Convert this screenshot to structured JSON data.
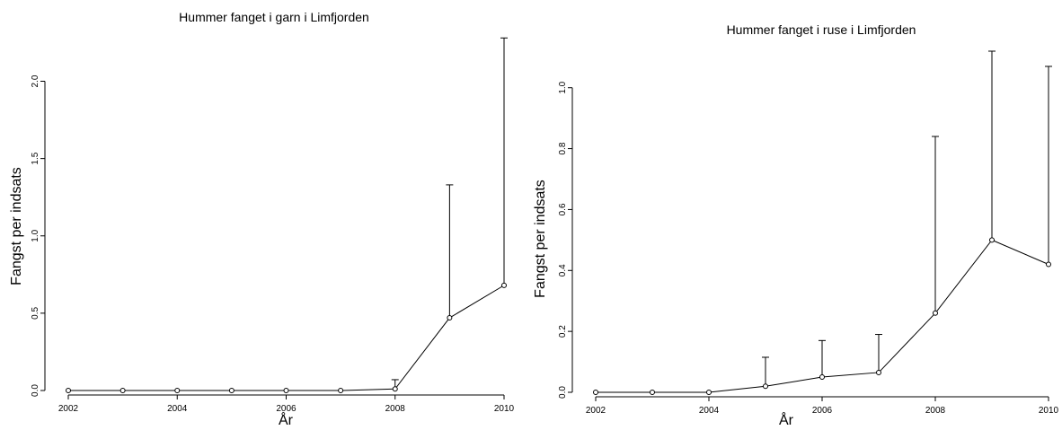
{
  "chart_data": [
    {
      "type": "line",
      "title": "Hummer fanget i garn i Limfjorden",
      "xlabel": "År",
      "ylabel": "Fangst per indsats",
      "xlim": [
        2002,
        2010
      ],
      "ylim": [
        0,
        2.27
      ],
      "xticks": [
        "2002",
        "2004",
        "2006",
        "2008",
        "2010"
      ],
      "yticks": [
        "0.0",
        "0.5",
        "1.0",
        "1.5",
        "2.0"
      ],
      "x": [
        2002,
        2003,
        2004,
        2005,
        2006,
        2007,
        2008,
        2009,
        2010
      ],
      "series": [
        {
          "values": [
            0,
            0,
            0,
            0,
            0,
            0,
            0.01,
            0.47,
            0.68
          ],
          "upper": [
            0,
            0,
            0,
            0,
            0,
            0,
            0.07,
            1.33,
            2.28
          ]
        }
      ],
      "grid": false,
      "legend": "none"
    },
    {
      "type": "line",
      "title": "Hummer fanget i ruse i Limfjorden",
      "xlabel": "År",
      "ylabel": "Fangst per indsats",
      "xlim": [
        2002,
        2010
      ],
      "ylim": [
        0,
        1.12
      ],
      "xticks": [
        "2002",
        "2004",
        "2006",
        "2008",
        "2010"
      ],
      "yticks": [
        "0.0",
        "0.2",
        "0.4",
        "0.6",
        "0.8",
        "1.0"
      ],
      "x": [
        2002,
        2003,
        2004,
        2005,
        2006,
        2007,
        2008,
        2009,
        2010
      ],
      "series": [
        {
          "values": [
            0,
            0,
            0,
            0.02,
            0.05,
            0.065,
            0.26,
            0.5,
            0.42
          ],
          "upper": [
            0,
            0,
            0,
            0.115,
            0.17,
            0.19,
            0.84,
            1.12,
            1.07
          ]
        }
      ],
      "grid": false,
      "legend": "none"
    }
  ]
}
